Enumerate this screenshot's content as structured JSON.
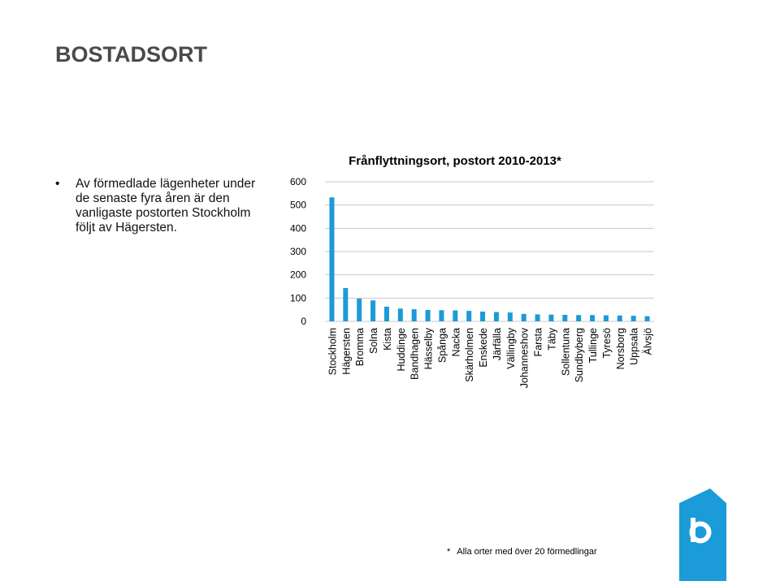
{
  "slide": {
    "title": "BOSTADSORT",
    "bullet": "Av förmedlade lägenheter under de senaste fyra åren är den vanligaste postorten Stockholm följt av Hägersten.",
    "footnote_mark": "*",
    "footnote": "Alla orter med över 20 förmedlingar"
  },
  "colors": {
    "bar": "#1B9BD7",
    "grid": "#C8C8C8",
    "logo": "#1B9BD7"
  },
  "logo_icon": "letter-b-logo-icon",
  "chart_data": {
    "type": "bar",
    "title": "Frånflyttningsort, postort 2010-2013*",
    "xlabel": "",
    "ylabel": "",
    "ylim": [
      0,
      600
    ],
    "yticks": [
      0,
      100,
      200,
      300,
      400,
      500,
      600
    ],
    "grid": true,
    "legend": "none",
    "categories": [
      "Stockholm",
      "Hägersten",
      "Bromma",
      "Solna",
      "Kista",
      "Huddinge",
      "Bandhagen",
      "Hässelby",
      "Spånga",
      "Nacka",
      "Skärholmen",
      "Enskede",
      "Järfälla",
      "Vällingby",
      "Johanneshov",
      "Farsta",
      "Täby",
      "Sollentuna",
      "Sundbyberg",
      "Tullinge",
      "Tyresö",
      "Norsborg",
      "Uppsala",
      "Älvsjö"
    ],
    "values": [
      533,
      143,
      98,
      90,
      63,
      55,
      52,
      49,
      48,
      47,
      45,
      42,
      40,
      38,
      32,
      30,
      29,
      28,
      27,
      27,
      26,
      25,
      24,
      22
    ]
  }
}
